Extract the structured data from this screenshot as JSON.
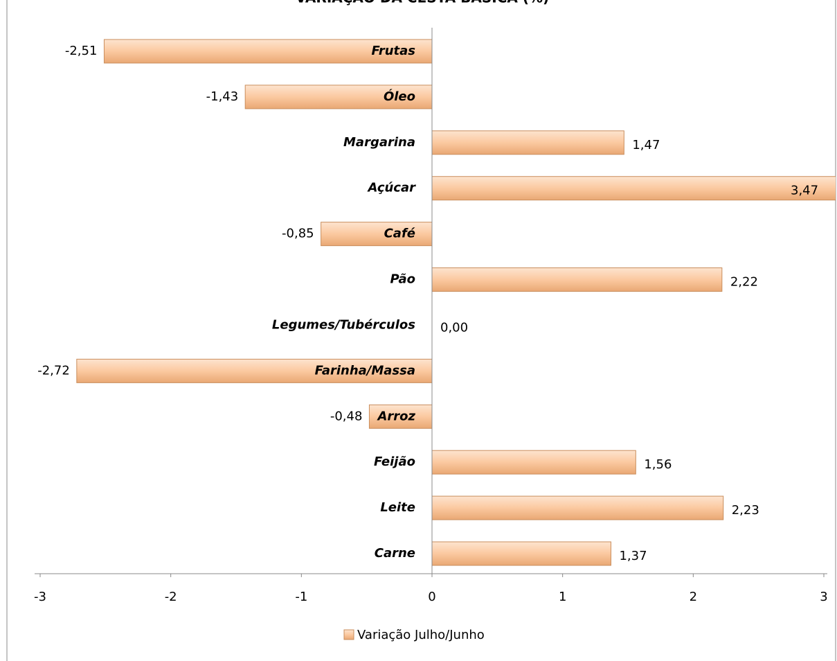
{
  "chart_data": {
    "type": "bar",
    "orientation": "horizontal",
    "title": "VARIAÇÃO DA CESTA BÁSICA (%)",
    "categories": [
      "Carne",
      "Leite",
      "Feijão",
      "Arroz",
      "Farinha/Massa",
      "Legumes/Tubérculos",
      "Pão",
      "Café",
      "Açúcar",
      "Margarina",
      "Óleo",
      "Frutas"
    ],
    "series": [
      {
        "name": "Variação Julho/Junho",
        "color": "#fbc9a0",
        "values": [
          1.37,
          2.23,
          1.56,
          -0.48,
          -2.72,
          0.0,
          2.22,
          -0.85,
          3.47,
          1.47,
          -1.43,
          -2.51
        ],
        "value_labels": [
          "1,37",
          "2,23",
          "1,56",
          "-0,48",
          "-2,72",
          "0,00",
          "2,22",
          "-0,85",
          "3,47",
          "1,47",
          "-1,43",
          "-2,51"
        ]
      }
    ],
    "xlim": [
      -3,
      3
    ],
    "xticks": [
      -3,
      -2,
      -1,
      0,
      1,
      2,
      3
    ],
    "legend": "bottom"
  }
}
